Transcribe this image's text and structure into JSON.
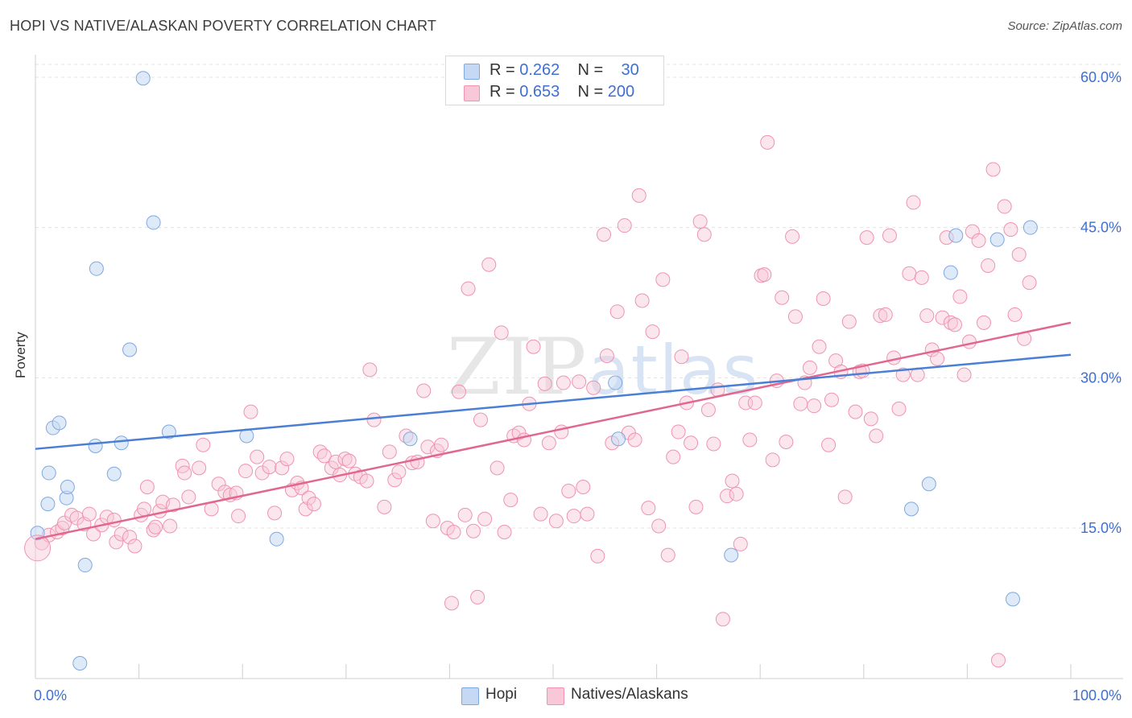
{
  "title": "HOPI VS NATIVE/ALASKAN POVERTY CORRELATION CHART",
  "source": "Source: ZipAtlas.com",
  "watermark": {
    "part1": "ZIP",
    "part2": "atlas"
  },
  "legend_top": {
    "rows": [
      {
        "r_label": "R = ",
        "r_value": "0.262",
        "n_label": "N = ",
        "n_value": "30",
        "fill": "#c5d9f4",
        "stroke": "#7fa8e0"
      },
      {
        "r_label": "R = ",
        "r_value": "0.653",
        "n_label": "N = ",
        "n_value": "200",
        "fill": "#f9c8d8",
        "stroke": "#ef93b0"
      }
    ]
  },
  "legend_bottom": [
    {
      "label": "Hopi",
      "fill": "#c5d9f4",
      "stroke": "#7fa8e0"
    },
    {
      "label": "Natives/Alaskans",
      "fill": "#f9c8d8",
      "stroke": "#ef93b0"
    }
  ],
  "chart_data": {
    "type": "scatter",
    "title": "HOPI VS NATIVE/ALASKAN POVERTY CORRELATION CHART",
    "xlabel": "",
    "ylabel": "Poverty",
    "xlim": [
      0,
      100
    ],
    "ylim": [
      0,
      63
    ],
    "x_tick_labels": [
      "0.0%",
      "100.0%"
    ],
    "y_ticks": [
      15,
      30,
      45,
      60
    ],
    "y_tick_labels": [
      "15.0%",
      "30.0%",
      "45.0%",
      "60.0%"
    ],
    "grid": "horizontal dashed",
    "legend": "top-center",
    "colors": {
      "hopi": "#4a7fd4",
      "natives": "#e0688f",
      "tick_text": "#3f6fcf"
    },
    "series": [
      {
        "name": "Hopi",
        "trend": {
          "x": [
            0,
            100
          ],
          "y": [
            22.9,
            32.3
          ]
        },
        "points": [
          [
            0.2,
            14.5
          ],
          [
            1.2,
            17.4
          ],
          [
            1.3,
            20.5
          ],
          [
            1.7,
            25.0
          ],
          [
            2.3,
            25.5
          ],
          [
            3.0,
            18.0
          ],
          [
            3.1,
            19.1
          ],
          [
            4.3,
            1.5
          ],
          [
            4.8,
            11.3
          ],
          [
            5.8,
            23.2
          ],
          [
            5.9,
            40.9
          ],
          [
            7.6,
            20.4
          ],
          [
            8.3,
            23.5
          ],
          [
            9.1,
            32.8
          ],
          [
            10.4,
            59.9
          ],
          [
            11.4,
            45.5
          ],
          [
            12.9,
            24.6
          ],
          [
            20.4,
            24.2
          ],
          [
            23.3,
            13.9
          ],
          [
            36.2,
            23.9
          ],
          [
            56.0,
            29.5
          ],
          [
            56.3,
            23.9
          ],
          [
            67.2,
            12.3
          ],
          [
            84.6,
            16.9
          ],
          [
            86.3,
            19.4
          ],
          [
            88.4,
            40.5
          ],
          [
            88.9,
            44.2
          ],
          [
            92.9,
            43.8
          ],
          [
            94.4,
            7.9
          ],
          [
            96.1,
            45.0
          ]
        ]
      },
      {
        "name": "Natives/Alaskans",
        "trend": {
          "x": [
            0,
            100
          ],
          "y": [
            13.9,
            35.5
          ]
        },
        "points": [
          [
            0.6,
            13.5
          ],
          [
            1.3,
            14.3
          ],
          [
            2.1,
            14.6
          ],
          [
            2.6,
            15.0
          ],
          [
            2.8,
            15.5
          ],
          [
            3.5,
            16.3
          ],
          [
            4.0,
            16.0
          ],
          [
            4.7,
            15.4
          ],
          [
            5.2,
            16.4
          ],
          [
            5.6,
            14.4
          ],
          [
            6.4,
            15.3
          ],
          [
            6.9,
            16.1
          ],
          [
            7.6,
            15.8
          ],
          [
            7.8,
            13.6
          ],
          [
            8.3,
            14.4
          ],
          [
            9.1,
            14.1
          ],
          [
            9.6,
            13.2
          ],
          [
            10.2,
            16.3
          ],
          [
            10.5,
            16.9
          ],
          [
            10.8,
            19.1
          ],
          [
            11.4,
            14.8
          ],
          [
            11.6,
            15.1
          ],
          [
            12.0,
            16.7
          ],
          [
            12.3,
            17.6
          ],
          [
            13.0,
            15.2
          ],
          [
            13.3,
            17.3
          ],
          [
            14.2,
            21.2
          ],
          [
            14.4,
            20.5
          ],
          [
            14.8,
            18.1
          ],
          [
            15.8,
            21.0
          ],
          [
            16.2,
            23.3
          ],
          [
            17.0,
            16.9
          ],
          [
            17.7,
            19.4
          ],
          [
            18.3,
            18.6
          ],
          [
            18.8,
            18.3
          ],
          [
            19.4,
            18.5
          ],
          [
            19.6,
            16.2
          ],
          [
            20.3,
            20.7
          ],
          [
            20.8,
            26.6
          ],
          [
            21.4,
            22.1
          ],
          [
            21.9,
            20.5
          ],
          [
            22.6,
            21.1
          ],
          [
            23.1,
            16.5
          ],
          [
            23.8,
            21.0
          ],
          [
            24.3,
            21.9
          ],
          [
            24.8,
            18.8
          ],
          [
            25.3,
            19.5
          ],
          [
            25.7,
            19.0
          ],
          [
            26.1,
            16.9
          ],
          [
            26.4,
            18.0
          ],
          [
            26.9,
            17.4
          ],
          [
            27.5,
            22.6
          ],
          [
            27.9,
            22.2
          ],
          [
            28.6,
            21.0
          ],
          [
            29.0,
            21.6
          ],
          [
            29.4,
            20.3
          ],
          [
            29.9,
            21.9
          ],
          [
            30.3,
            21.7
          ],
          [
            30.9,
            20.4
          ],
          [
            31.4,
            20.1
          ],
          [
            32.0,
            19.7
          ],
          [
            32.3,
            30.8
          ],
          [
            32.7,
            25.8
          ],
          [
            33.7,
            17.1
          ],
          [
            34.2,
            22.6
          ],
          [
            34.7,
            19.8
          ],
          [
            35.1,
            20.6
          ],
          [
            35.8,
            24.2
          ],
          [
            36.4,
            21.5
          ],
          [
            36.9,
            21.6
          ],
          [
            37.5,
            28.7
          ],
          [
            37.9,
            23.1
          ],
          [
            38.4,
            15.7
          ],
          [
            38.8,
            22.7
          ],
          [
            39.2,
            23.3
          ],
          [
            39.8,
            15.0
          ],
          [
            40.2,
            7.5
          ],
          [
            40.4,
            14.6
          ],
          [
            40.9,
            28.6
          ],
          [
            41.5,
            16.3
          ],
          [
            41.8,
            38.9
          ],
          [
            42.3,
            14.7
          ],
          [
            42.7,
            8.1
          ],
          [
            43.0,
            25.8
          ],
          [
            43.4,
            15.9
          ],
          [
            43.8,
            41.3
          ],
          [
            44.6,
            21.0
          ],
          [
            45.0,
            34.5
          ],
          [
            45.3,
            14.6
          ],
          [
            45.9,
            17.8
          ],
          [
            46.2,
            24.2
          ],
          [
            46.7,
            24.5
          ],
          [
            47.2,
            23.8
          ],
          [
            47.7,
            27.4
          ],
          [
            48.1,
            33.1
          ],
          [
            48.8,
            16.4
          ],
          [
            49.2,
            29.4
          ],
          [
            49.6,
            23.5
          ],
          [
            50.3,
            15.7
          ],
          [
            50.8,
            24.6
          ],
          [
            51.0,
            29.5
          ],
          [
            51.5,
            18.7
          ],
          [
            52.0,
            16.2
          ],
          [
            52.5,
            29.6
          ],
          [
            52.9,
            19.1
          ],
          [
            53.3,
            16.4
          ],
          [
            53.9,
            29.0
          ],
          [
            54.3,
            12.2
          ],
          [
            54.9,
            44.3
          ],
          [
            55.2,
            32.2
          ],
          [
            55.7,
            23.5
          ],
          [
            56.2,
            36.6
          ],
          [
            56.9,
            45.2
          ],
          [
            57.3,
            24.5
          ],
          [
            57.9,
            23.8
          ],
          [
            58.3,
            48.2
          ],
          [
            58.6,
            37.7
          ],
          [
            59.2,
            17.0
          ],
          [
            59.6,
            34.6
          ],
          [
            60.2,
            15.2
          ],
          [
            60.6,
            39.8
          ],
          [
            61.1,
            12.3
          ],
          [
            61.6,
            22.1
          ],
          [
            62.1,
            24.6
          ],
          [
            62.4,
            32.1
          ],
          [
            62.9,
            27.5
          ],
          [
            63.3,
            23.5
          ],
          [
            63.8,
            17.1
          ],
          [
            64.2,
            45.6
          ],
          [
            64.6,
            44.3
          ],
          [
            65.0,
            26.8
          ],
          [
            65.5,
            23.4
          ],
          [
            65.9,
            28.8
          ],
          [
            66.4,
            5.9
          ],
          [
            66.8,
            18.2
          ],
          [
            67.3,
            19.7
          ],
          [
            67.7,
            18.4
          ],
          [
            68.1,
            13.4
          ],
          [
            68.6,
            27.5
          ],
          [
            69.0,
            23.8
          ],
          [
            69.5,
            27.5
          ],
          [
            70.1,
            40.2
          ],
          [
            70.4,
            40.3
          ],
          [
            70.7,
            53.5
          ],
          [
            71.2,
            21.8
          ],
          [
            71.6,
            29.7
          ],
          [
            72.1,
            38.0
          ],
          [
            72.5,
            23.6
          ],
          [
            73.1,
            44.1
          ],
          [
            73.4,
            36.1
          ],
          [
            73.9,
            27.4
          ],
          [
            74.3,
            29.5
          ],
          [
            74.8,
            31.0
          ],
          [
            75.2,
            27.2
          ],
          [
            75.7,
            33.1
          ],
          [
            76.1,
            37.9
          ],
          [
            76.6,
            23.3
          ],
          [
            76.9,
            27.8
          ],
          [
            77.3,
            31.7
          ],
          [
            77.8,
            30.6
          ],
          [
            78.2,
            18.1
          ],
          [
            78.6,
            35.6
          ],
          [
            79.2,
            26.6
          ],
          [
            79.6,
            30.6
          ],
          [
            79.9,
            30.7
          ],
          [
            80.3,
            44.0
          ],
          [
            80.7,
            25.9
          ],
          [
            81.2,
            24.2
          ],
          [
            81.6,
            36.2
          ],
          [
            82.1,
            36.3
          ],
          [
            82.5,
            44.2
          ],
          [
            82.9,
            32.0
          ],
          [
            83.4,
            26.9
          ],
          [
            83.8,
            30.3
          ],
          [
            84.4,
            40.4
          ],
          [
            84.8,
            47.5
          ],
          [
            85.2,
            30.3
          ],
          [
            85.6,
            40.0
          ],
          [
            86.1,
            36.2
          ],
          [
            86.6,
            32.8
          ],
          [
            87.1,
            31.9
          ],
          [
            87.6,
            36.0
          ],
          [
            88.0,
            44.0
          ],
          [
            88.4,
            35.5
          ],
          [
            88.8,
            35.3
          ],
          [
            89.3,
            38.1
          ],
          [
            89.7,
            30.3
          ],
          [
            90.2,
            33.6
          ],
          [
            90.5,
            44.6
          ],
          [
            91.1,
            43.7
          ],
          [
            91.6,
            35.5
          ],
          [
            92.0,
            41.2
          ],
          [
            92.5,
            50.8
          ],
          [
            93.0,
            1.8
          ],
          [
            93.6,
            47.1
          ],
          [
            94.2,
            44.8
          ],
          [
            94.6,
            36.3
          ],
          [
            95.0,
            42.3
          ],
          [
            95.5,
            33.9
          ],
          [
            96.0,
            39.5
          ]
        ]
      }
    ]
  }
}
